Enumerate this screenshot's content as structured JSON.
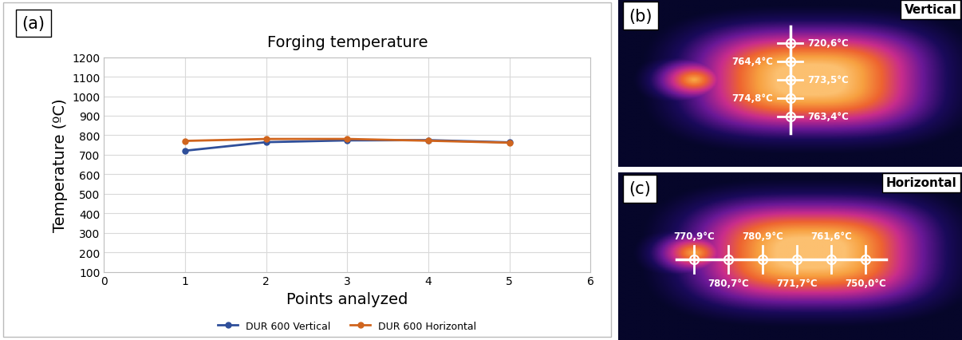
{
  "chart_data": {
    "type": "line",
    "title": "Forging temperature",
    "x_label": "Points analyzed",
    "y_label": "Temperature (ºC)",
    "x": [
      1,
      2,
      3,
      4,
      5
    ],
    "series": [
      {
        "name": "DUR 600 Vertical",
        "color": "#2f4f9a",
        "marker": "o",
        "values": [
          720.6,
          764.4,
          773.5,
          774.8,
          763.4
        ]
      },
      {
        "name": "DUR 600 Horizontal",
        "color": "#d0651e",
        "marker": "o",
        "values": [
          770.9,
          780.7,
          780.9,
          771.7,
          761.6
        ]
      }
    ],
    "xlim": [
      0,
      6
    ],
    "xticks": [
      0,
      1,
      2,
      3,
      4,
      5,
      6
    ],
    "ylim": [
      100,
      1200
    ],
    "yticks": [
      100,
      200,
      300,
      400,
      500,
      600,
      700,
      800,
      900,
      1000,
      1100,
      1200
    ],
    "grid": true,
    "legend": "lower center"
  },
  "panel_label": "(a)",
  "thermal_images": [
    {
      "panel_label": "(b)",
      "title": "Vertical",
      "orientation": "vertical",
      "readings": [
        "720,6°C",
        "764,4°C",
        "773,5°C",
        "774,8°C",
        "763,4°C"
      ]
    },
    {
      "panel_label": "(c)",
      "title": "Horizontal",
      "orientation": "horizontal",
      "readings": [
        "770,9°C",
        "780,7°C",
        "780,9°C",
        "771,7°C",
        "761,6°C",
        "750,0°C"
      ]
    }
  ]
}
